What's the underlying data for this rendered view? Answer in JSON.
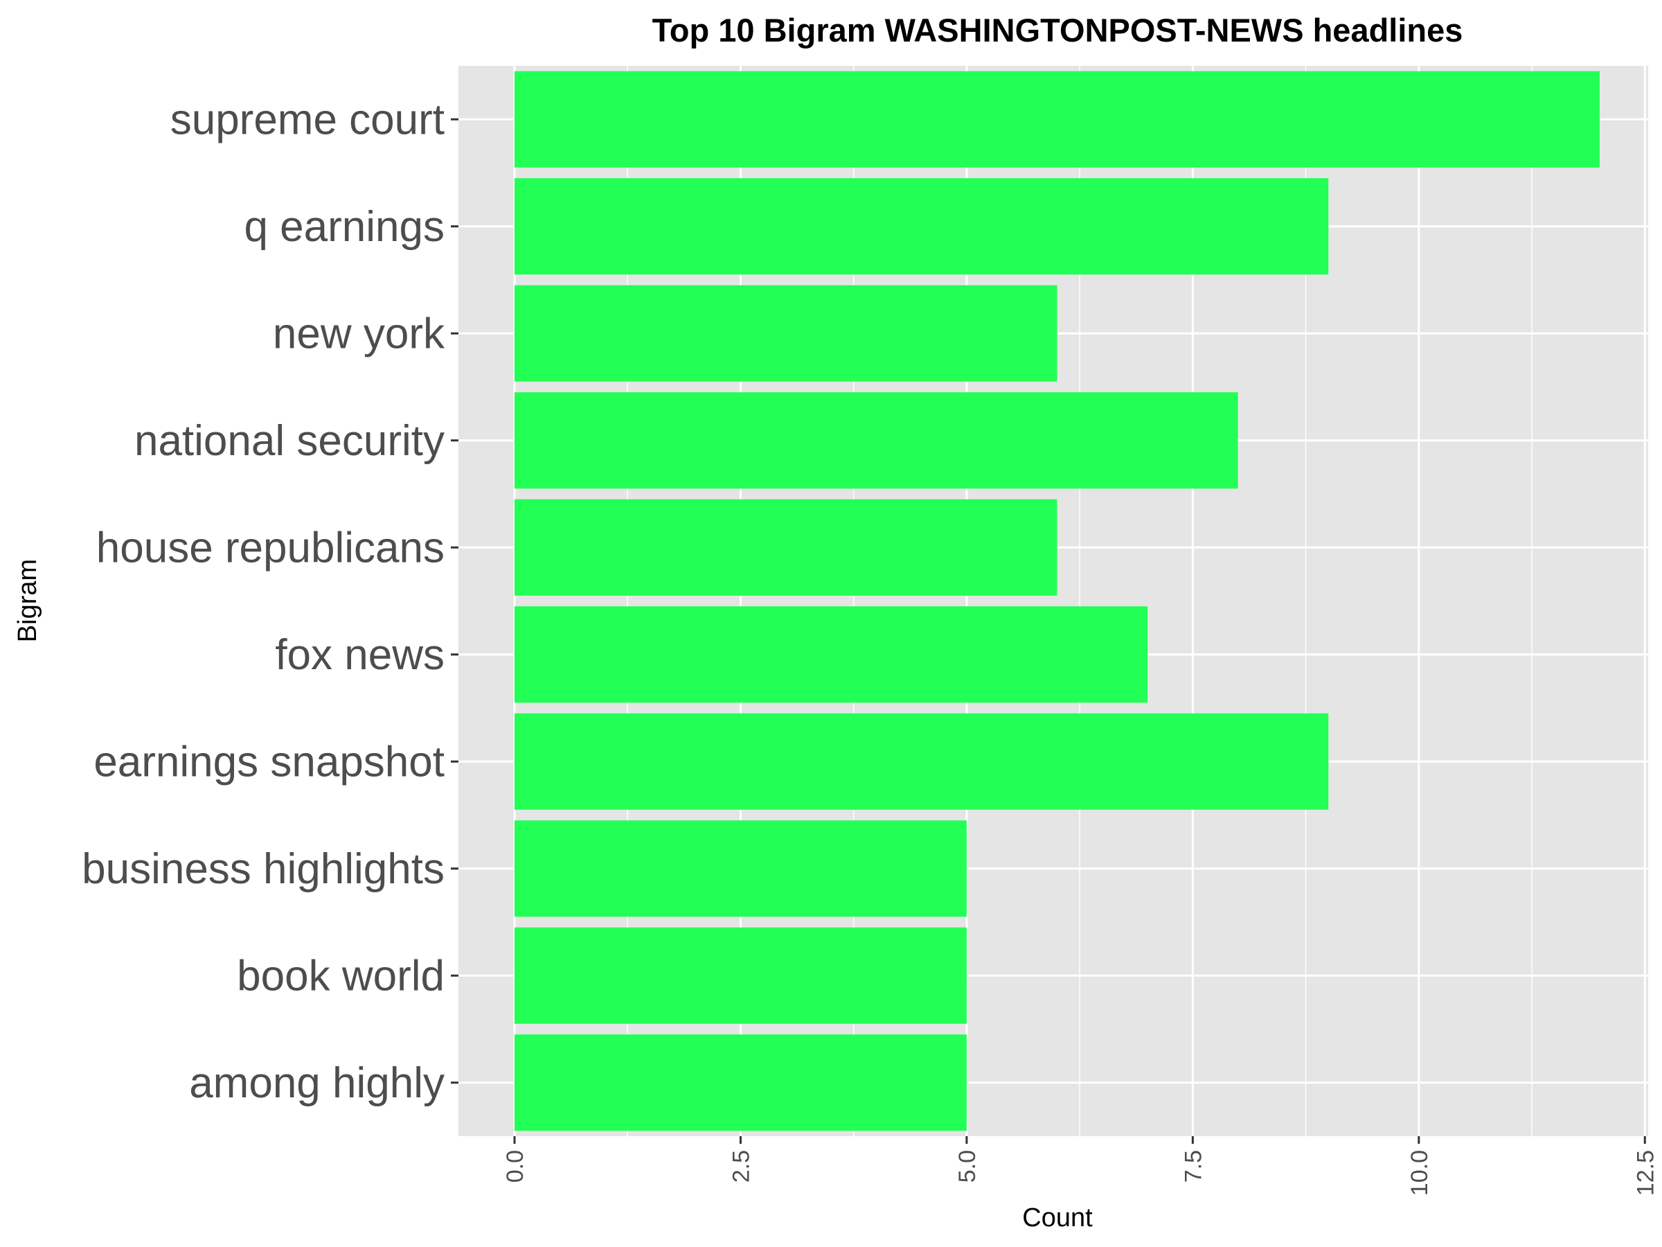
{
  "chart_data": {
    "type": "bar",
    "orientation": "horizontal",
    "title": "Top 10 Bigram WASHINGTONPOST-NEWS headlines",
    "xlabel": "Count",
    "ylabel": "Bigram",
    "categories": [
      "supreme court",
      "q earnings",
      "new york",
      "national security",
      "house republicans",
      "fox news",
      "earnings snapshot",
      "business highlights",
      "book world",
      "among highly"
    ],
    "values": [
      12,
      9,
      6,
      8,
      6,
      7,
      9,
      5,
      5,
      5
    ],
    "xlim": [
      0,
      12.5
    ],
    "xticks": [
      0,
      2.5,
      5,
      7.5,
      10,
      12.5
    ],
    "xtick_labels": [
      "0.0",
      "2.5",
      "5.0",
      "7.5",
      "10.0",
      "12.5"
    ],
    "grid": true,
    "bar_color": "#22ff55",
    "panel_background": "#e5e5e5",
    "grid_color": "#ffffff"
  }
}
